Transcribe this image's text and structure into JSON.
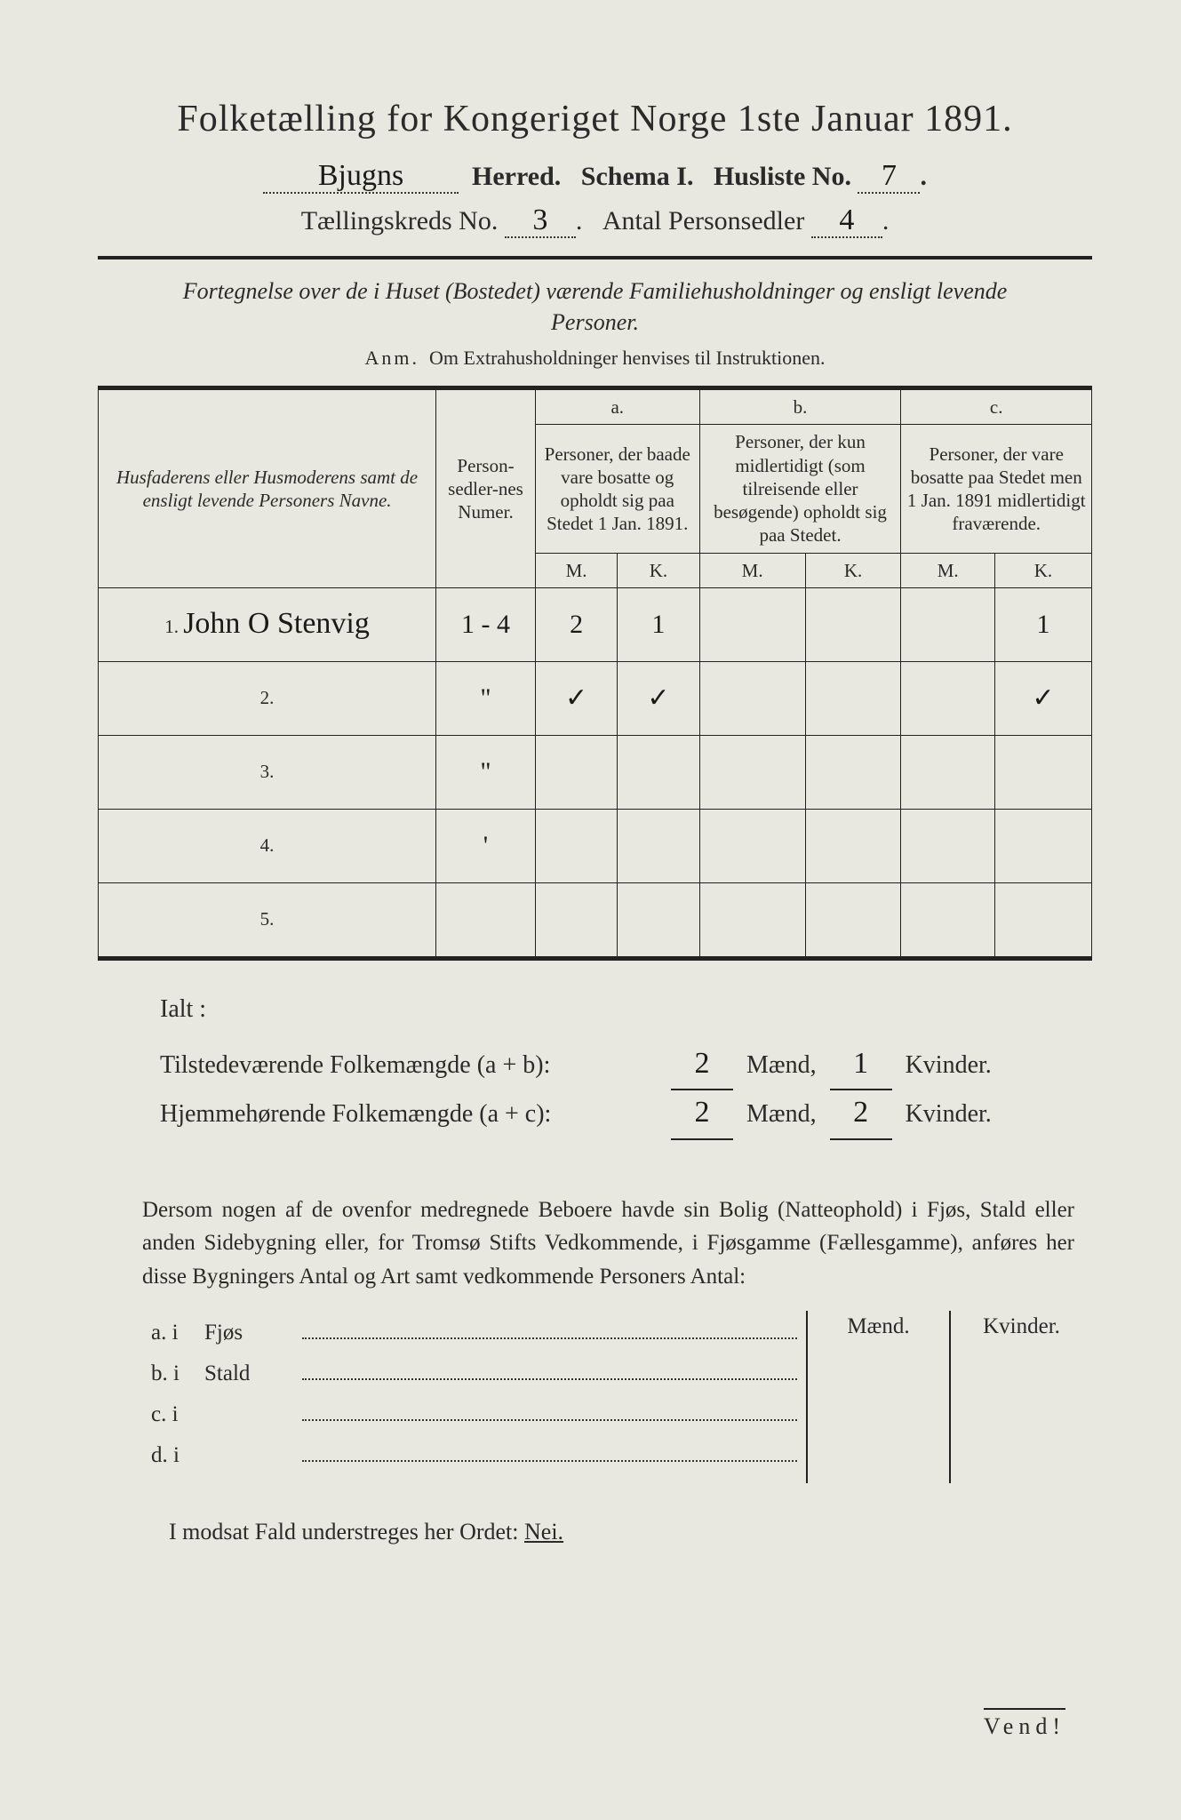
{
  "header": {
    "title": "Folketælling for Kongeriget Norge 1ste Januar 1891.",
    "herred_value": "Bjugns",
    "herred_label": "Herred.",
    "schema_label": "Schema I.",
    "husliste_label": "Husliste No.",
    "husliste_value": "7",
    "kreds_label": "Tællingskreds No.",
    "kreds_value": "3",
    "antal_label": "Antal Personsedler",
    "antal_value": "4"
  },
  "subheading": {
    "text": "Fortegnelse over de i Huset (Bostedet) værende Familiehusholdninger og ensligt levende Personer.",
    "anm_label": "Anm.",
    "anm_text": "Om Extrahusholdninger henvises til Instruktionen."
  },
  "table": {
    "col_name": "Husfaderens eller Husmoderens samt de ensligt levende Personers Navne.",
    "col_num": "Person-sedler-nes Numer.",
    "group_a_key": "a.",
    "group_a": "Personer, der baade vare bosatte og opholdt sig paa Stedet 1 Jan. 1891.",
    "group_b_key": "b.",
    "group_b": "Personer, der kun midlertidigt (som tilreisende eller besøgende) opholdt sig paa Stedet.",
    "group_c_key": "c.",
    "group_c": "Personer, der vare bosatte paa Stedet men 1 Jan. 1891 midlertidigt fraværende.",
    "mk_m": "M.",
    "mk_k": "K.",
    "rows": [
      {
        "n": "1.",
        "name": "John O Stenvig",
        "num": "1 - 4",
        "am": "2",
        "ak": "1",
        "bm": "",
        "bk": "",
        "cm": "",
        "ck": "1"
      },
      {
        "n": "2.",
        "name": "",
        "num": "\"",
        "am": "✓",
        "ak": "✓",
        "bm": "",
        "bk": "",
        "cm": "",
        "ck": "✓"
      },
      {
        "n": "3.",
        "name": "",
        "num": "\"",
        "am": "",
        "ak": "",
        "bm": "",
        "bk": "",
        "cm": "",
        "ck": ""
      },
      {
        "n": "4.",
        "name": "",
        "num": "'",
        "am": "",
        "ak": "",
        "bm": "",
        "bk": "",
        "cm": "",
        "ck": ""
      },
      {
        "n": "5.",
        "name": "",
        "num": "",
        "am": "",
        "ak": "",
        "bm": "",
        "bk": "",
        "cm": "",
        "ck": ""
      }
    ]
  },
  "totals": {
    "ialt": "Ialt :",
    "line1_label": "Tilstedeværende Folkemængde (a + b):",
    "line1_m": "2",
    "line1_k": "1",
    "line2_label": "Hjemmehørende Folkemængde (a + c):",
    "line2_m": "2",
    "line2_k": "2",
    "maend": "Mænd,",
    "kvinder": "Kvinder."
  },
  "paragraph": "Dersom nogen af de ovenfor medregnede Beboere havde sin Bolig (Natteophold) i Fjøs, Stald eller anden Sidebygning eller, for Tromsø Stifts Vedkommende, i Fjøsgamme (Fællesgamme), anføres her disse Bygningers Antal og Art samt vedkommende Personers Antal:",
  "side_headers": {
    "m": "Mænd.",
    "k": "Kvinder."
  },
  "sublist": [
    {
      "key": "a.  i",
      "word": "Fjøs"
    },
    {
      "key": "b.  i",
      "word": "Stald"
    },
    {
      "key": "c.  i",
      "word": ""
    },
    {
      "key": "d.  i",
      "word": ""
    }
  ],
  "nei_line": {
    "prefix": "I modsat Fald understreges her Ordet: ",
    "word": "Nei."
  },
  "vend": "Vend!",
  "colors": {
    "paper": "#e8e8e0",
    "ink": "#2a2a2a",
    "bg": "#1a1a1a"
  }
}
